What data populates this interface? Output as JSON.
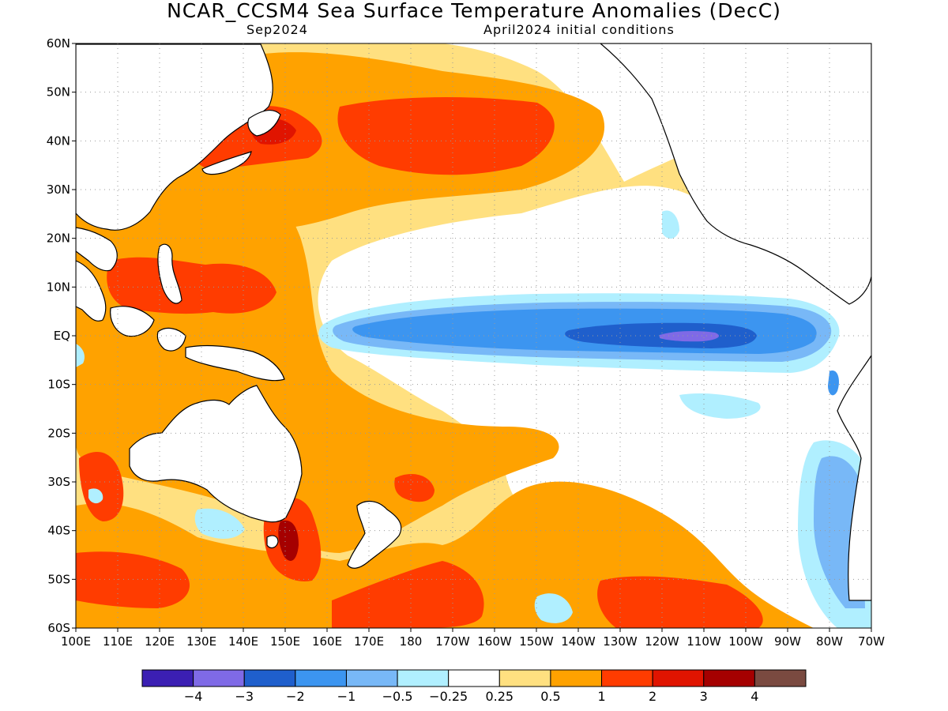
{
  "title": "NCAR_CCSM4 Sea Surface Temperature Anomalies (DecC)",
  "subtitle_left": "Sep2024",
  "subtitle_right": "April2024 initial conditions",
  "map": {
    "lon_range": [
      100,
      290
    ],
    "lat_range": [
      -60,
      60
    ],
    "lat_ticks": [
      "60N",
      "50N",
      "40N",
      "30N",
      "20N",
      "10N",
      "EQ",
      "10S",
      "20S",
      "30S",
      "40S",
      "50S",
      "60S"
    ],
    "lon_ticks": [
      "100E",
      "110E",
      "120E",
      "130E",
      "140E",
      "150E",
      "160E",
      "170E",
      "180",
      "170W",
      "160W",
      "150W",
      "140W",
      "130W",
      "120W",
      "110W",
      "100W",
      "90W",
      "80W",
      "70W"
    ],
    "grid": "dotted"
  },
  "colorbar": {
    "colors": [
      "#3b1fb3",
      "#7f6ae6",
      "#1f5fcc",
      "#3c95f0",
      "#78b8f7",
      "#b0efff",
      "#ffffff",
      "#ffe080",
      "#ffa200",
      "#ff3c00",
      "#e01400",
      "#a50000",
      "#7a4a40"
    ],
    "labels": [
      "−4",
      "−3",
      "−2",
      "−1",
      "−0.5",
      "−0.25",
      "0.25",
      "0.5",
      "1",
      "2",
      "3",
      "4"
    ]
  }
}
